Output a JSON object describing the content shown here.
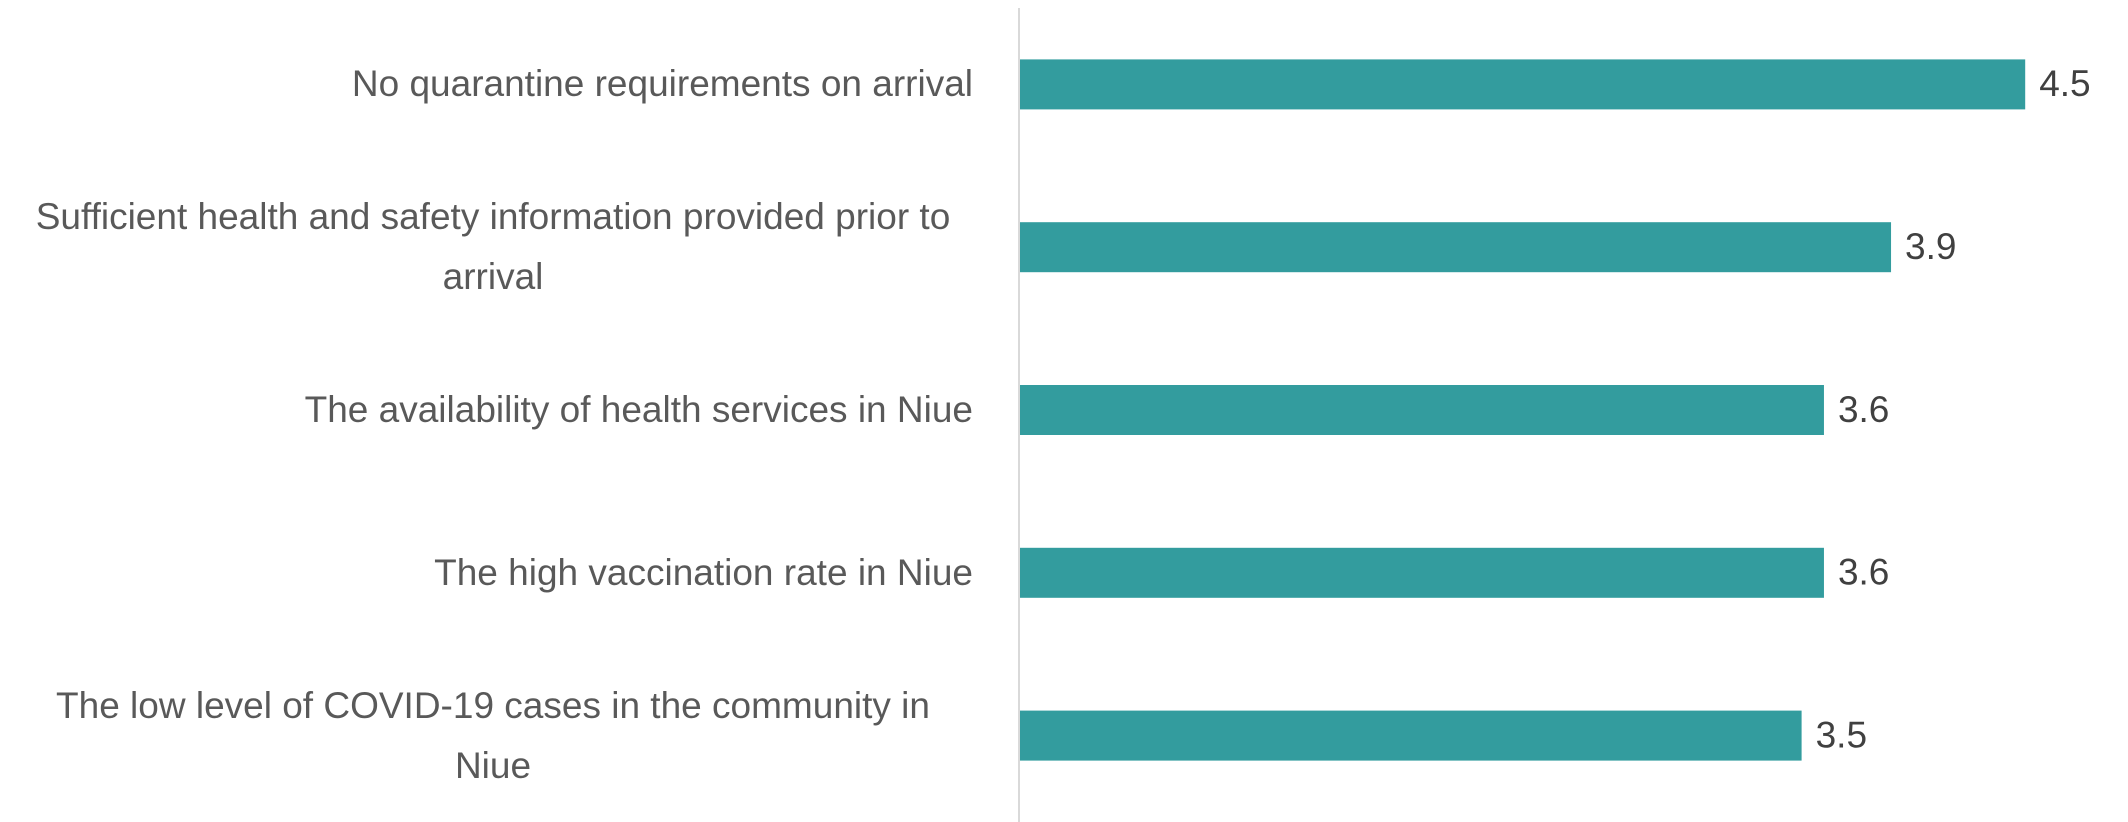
{
  "chart_data": {
    "type": "bar",
    "orientation": "horizontal",
    "categories": [
      "No quarantine requirements on arrival",
      "Sufficient health and safety information provided prior to arrival",
      "The availability of health services in Niue",
      "The high vaccination rate in Niue",
      "The low level of COVID-19 cases in the community in Niue"
    ],
    "values": [
      4.5,
      3.9,
      3.6,
      3.6,
      3.5
    ],
    "color": "#339c9e",
    "xlim": [
      0,
      5
    ]
  }
}
